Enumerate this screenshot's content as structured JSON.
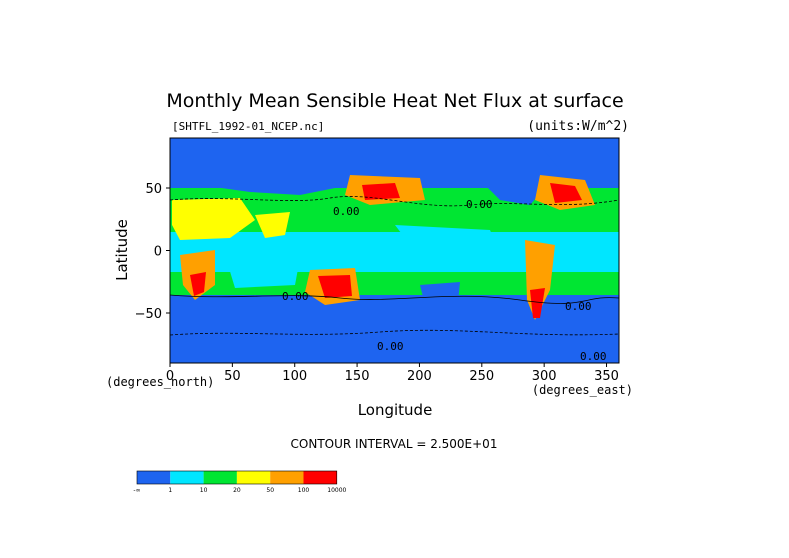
{
  "chart_data": {
    "type": "heatmap",
    "title": "Monthly Mean Sensible Heat Net Flux at surface",
    "dataset_label": "[SHTFL_1992-01_NCEP.nc]",
    "units_label": "(units:W/m^2)",
    "xlabel": "Longitude",
    "ylabel": "Latitude",
    "x_unit_note": "(degrees_east)",
    "y_unit_note": "(degrees_north)",
    "xlim": [
      0,
      360
    ],
    "ylim": [
      -90,
      90
    ],
    "x_ticks": [
      "0",
      "50",
      "100",
      "150",
      "200",
      "250",
      "300",
      "350"
    ],
    "x_tick_values": [
      0,
      50,
      100,
      150,
      200,
      250,
      300,
      350
    ],
    "y_ticks": [
      "50",
      "0",
      "−50"
    ],
    "y_tick_values": [
      50,
      0,
      -50
    ],
    "contour_interval": "CONTOUR INTERVAL = 2.500E+01",
    "contour_labels": [
      "0.00",
      "0.00",
      "0.00",
      "0.00",
      "0.00",
      "0.00"
    ],
    "colorbar": {
      "colors": [
        "#1e64f0",
        "#00e6ff",
        "#00e632",
        "#ffff00",
        "#ffa000",
        "#ff0000"
      ],
      "tick_labels": [
        "-∞",
        "1",
        "10",
        "20",
        "50",
        "100",
        "10000"
      ],
      "bounds": [
        null,
        1,
        10,
        20,
        50,
        100,
        10000
      ]
    }
  }
}
